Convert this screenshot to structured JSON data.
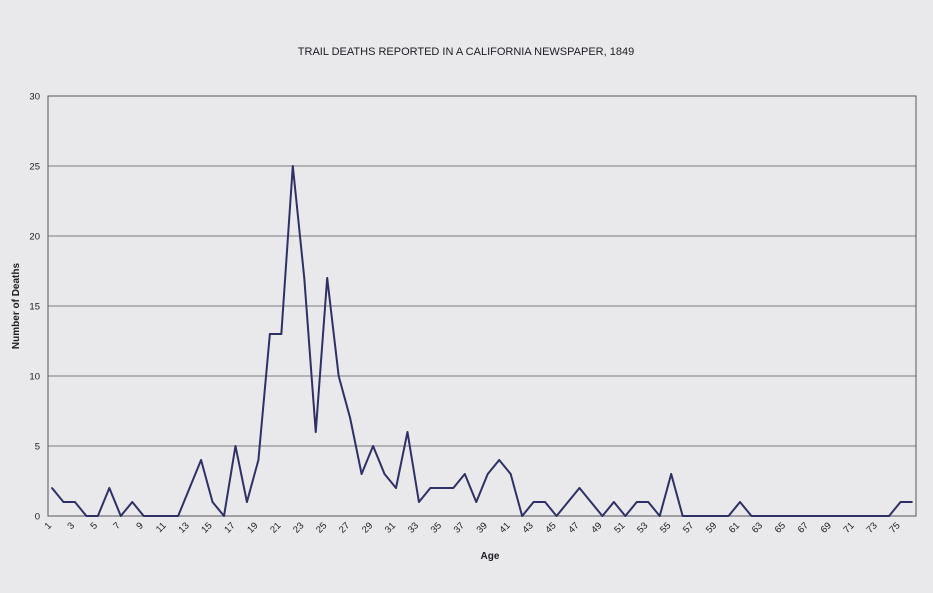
{
  "chart_data": {
    "type": "line",
    "title": "TRAIL DEATHS REPORTED IN A CALIFORNIA NEWSPAPER, 1849",
    "xlabel": "Age",
    "ylabel": "Number of Deaths",
    "ylim": [
      0,
      30
    ],
    "yticks": [
      0,
      5,
      10,
      15,
      20,
      25,
      30
    ],
    "xlim": [
      1,
      76
    ],
    "xtick_labels": [
      "1",
      "3",
      "5",
      "7",
      "9",
      "11",
      "13",
      "15",
      "17",
      "19",
      "21",
      "23",
      "25",
      "27",
      "29",
      "31",
      "33",
      "35",
      "37",
      "39",
      "41",
      "43",
      "45",
      "47",
      "49",
      "51",
      "53",
      "55",
      "57",
      "59",
      "61",
      "63",
      "65",
      "67",
      "69",
      "71",
      "73",
      "75"
    ],
    "grid": true,
    "legend": "none",
    "series": [
      {
        "x": [
          1,
          2,
          3,
          4,
          5,
          6,
          7,
          8,
          9,
          10,
          11,
          12,
          13,
          14,
          15,
          16,
          17,
          18,
          19,
          20,
          21,
          22,
          23,
          24,
          25,
          26,
          27,
          28,
          29,
          30,
          31,
          32,
          33,
          34,
          35,
          36,
          37,
          38,
          39,
          40,
          41,
          42,
          43,
          44,
          45,
          46,
          47,
          48,
          49,
          50,
          51,
          52,
          53,
          54,
          55,
          56,
          57,
          58,
          59,
          60,
          61,
          62,
          63,
          64,
          65,
          66,
          67,
          68,
          69,
          70,
          71,
          72,
          73,
          74,
          75,
          76
        ],
        "values": [
          2,
          1,
          1,
          0,
          0,
          2,
          0,
          1,
          0,
          0,
          0,
          0,
          2,
          4,
          1,
          0,
          5,
          1,
          4,
          13,
          13,
          25,
          17,
          6,
          17,
          10,
          7,
          3,
          5,
          3,
          2,
          6,
          1,
          2,
          2,
          2,
          3,
          1,
          3,
          4,
          3,
          0,
          1,
          1,
          0,
          1,
          2,
          1,
          0,
          1,
          0,
          1,
          1,
          0,
          3,
          0,
          0,
          0,
          0,
          0,
          1,
          0,
          0,
          0,
          0,
          0,
          0,
          0,
          0,
          0,
          0,
          0,
          0,
          0,
          1,
          1
        ],
        "color": "#2e3166"
      }
    ]
  }
}
